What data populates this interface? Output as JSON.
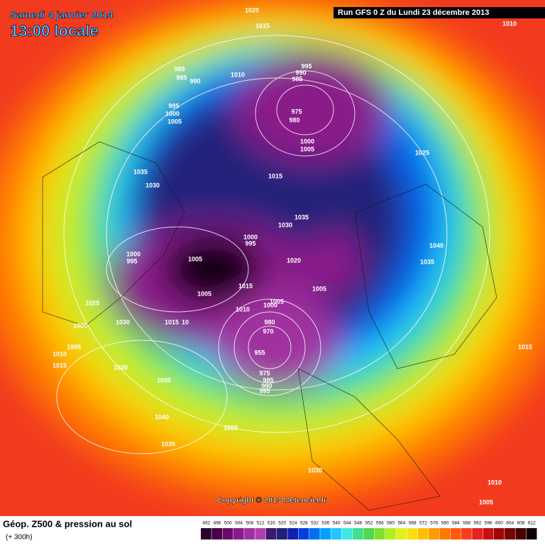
{
  "header": {
    "title": "Samedi 4 janvier 2014",
    "subtitle": "13:00 locale",
    "run": "Run GFS 0 Z du Lundi 23 décembre 2013"
  },
  "copyright": "Copyright © 2013 Meteociel.fr",
  "footer": {
    "title": "Géop. Z500 & pression au sol",
    "lead": "(+ 300h)"
  },
  "isobar_labels": [
    1020,
    1015,
    1010,
    985,
    985,
    990,
    1010,
    995,
    990,
    985,
    975,
    980,
    995,
    1000,
    1005,
    1000,
    1005,
    1025,
    1035,
    1030,
    1015,
    1035,
    1030,
    1000,
    995,
    1040,
    1035,
    1000,
    995,
    1005,
    1020,
    1005,
    1015,
    1005,
    1005,
    1010,
    1000,
    1025,
    1030,
    1015,
    10,
    1000,
    980,
    970,
    1005,
    1015,
    1010,
    955,
    1015,
    1020,
    975,
    985,
    990,
    995,
    1030,
    1040,
    1025,
    1035,
    1030,
    1010,
    1005
  ],
  "scale": {
    "values": [
      492,
      496,
      500,
      504,
      508,
      512,
      516,
      520,
      524,
      528,
      532,
      536,
      540,
      544,
      548,
      552,
      556,
      560,
      564,
      568,
      572,
      576,
      580,
      584,
      588,
      592,
      596,
      600,
      604,
      608,
      612
    ],
    "colors": [
      "#2a002a",
      "#4a004a",
      "#6a0a6a",
      "#8a1a8a",
      "#a030a0",
      "#b040b0",
      "#3a1a6a",
      "#20207a",
      "#1020b0",
      "#0040e0",
      "#0070f0",
      "#00a0ff",
      "#20c8ff",
      "#40e8e0",
      "#40e090",
      "#50d850",
      "#80e030",
      "#b0ee20",
      "#e0f020",
      "#f8e010",
      "#ffc000",
      "#ff9a00",
      "#ff7800",
      "#ff5a10",
      "#f83c1c",
      "#e82020",
      "#c81010",
      "#a00808",
      "#780404",
      "#480000",
      "#100000"
    ]
  }
}
